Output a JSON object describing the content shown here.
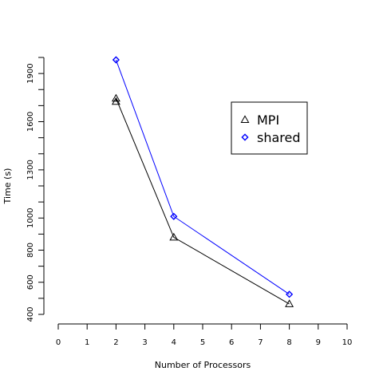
{
  "chart_data": {
    "type": "line",
    "title": "",
    "xlabel": "Number of Processors",
    "ylabel": "Time (s)",
    "xlim": [
      0,
      10
    ],
    "ylim": [
      400,
      2000
    ],
    "x_ticks": [
      0,
      1,
      2,
      3,
      4,
      5,
      6,
      7,
      8,
      9,
      10
    ],
    "y_ticks": [
      400,
      500,
      600,
      700,
      800,
      900,
      1000,
      1100,
      1200,
      1300,
      1400,
      1500,
      1600,
      1700,
      1800,
      1900,
      2000
    ],
    "y_tick_labels": [
      {
        "value": 400,
        "label": "400"
      },
      {
        "value": 600,
        "label": "600"
      },
      {
        "value": 800,
        "label": "800"
      },
      {
        "value": 1000,
        "label": "1000"
      },
      {
        "value": 1300,
        "label": "1300"
      },
      {
        "value": 1600,
        "label": "1600"
      },
      {
        "value": 1900,
        "label": "1900"
      }
    ],
    "grid": false,
    "legend_position": "top-right",
    "series": [
      {
        "name": "MPI",
        "color": "#000000",
        "marker": "triangle",
        "x": [
          2,
          2,
          4,
          8
        ],
        "y": [
          1725,
          1745,
          880,
          465
        ]
      },
      {
        "name": "shared",
        "color": "#0000ff",
        "marker": "diamond",
        "x": [
          2,
          4,
          8
        ],
        "y": [
          1985,
          1010,
          525
        ]
      }
    ]
  }
}
